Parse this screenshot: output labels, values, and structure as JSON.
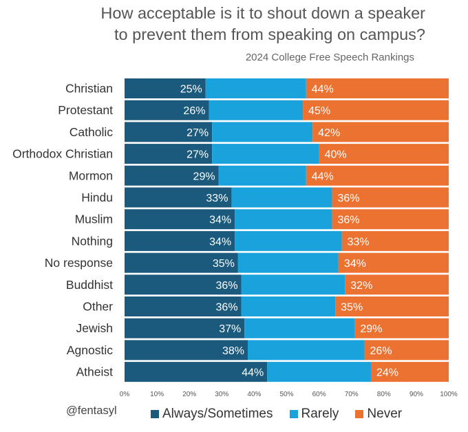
{
  "chart_data": {
    "type": "bar",
    "orientation": "horizontal",
    "stacked": true,
    "title_lines": [
      "How acceptable is it to shout down a speaker",
      "to prevent them from speaking on campus?"
    ],
    "subtitle": "2024 College Free Speech Rankings",
    "categories": [
      "Christian",
      "Protestant",
      "Catholic",
      "Orthodox Christian",
      "Mormon",
      "Hindu",
      "Muslim",
      "Nothing",
      "No response",
      "Buddhist",
      "Other",
      "Jewish",
      "Agnostic",
      "Atheist"
    ],
    "series": [
      {
        "name": "Always/Sometimes",
        "color": "#1b5a7d",
        "values": [
          25,
          26,
          27,
          27,
          29,
          33,
          34,
          34,
          35,
          36,
          36,
          37,
          38,
          44
        ]
      },
      {
        "name": "Rarely",
        "color": "#1aa2dc",
        "values": [
          31,
          29,
          31,
          33,
          27,
          31,
          30,
          33,
          31,
          32,
          29,
          34,
          36,
          32
        ]
      },
      {
        "name": "Never",
        "color": "#ec7232",
        "values": [
          44,
          45,
          42,
          40,
          44,
          36,
          36,
          33,
          34,
          32,
          35,
          29,
          26,
          24
        ]
      }
    ],
    "data_labels": {
      "Always/Sometimes": [
        "25%",
        "26%",
        "27%",
        "27%",
        "29%",
        "33%",
        "34%",
        "34%",
        "35%",
        "36%",
        "36%",
        "37%",
        "38%",
        "44%"
      ],
      "Never": [
        "44%",
        "45%",
        "42%",
        "40%",
        "44%",
        "36%",
        "36%",
        "33%",
        "34%",
        "32%",
        "35%",
        "29%",
        "26%",
        "24%"
      ]
    },
    "xlim": [
      0,
      100
    ],
    "x_ticks": [
      "0%",
      "10%",
      "20%",
      "30%",
      "40%",
      "50%",
      "60%",
      "70%",
      "80%",
      "90%",
      "100%"
    ],
    "grid": false,
    "legend_position": "bottom"
  },
  "credit": "@fentasyl",
  "legend": [
    {
      "label": "Always/Sometimes",
      "color": "#1b5a7d"
    },
    {
      "label": "Rarely",
      "color": "#1aa2dc"
    },
    {
      "label": "Never",
      "color": "#ec7232"
    }
  ]
}
